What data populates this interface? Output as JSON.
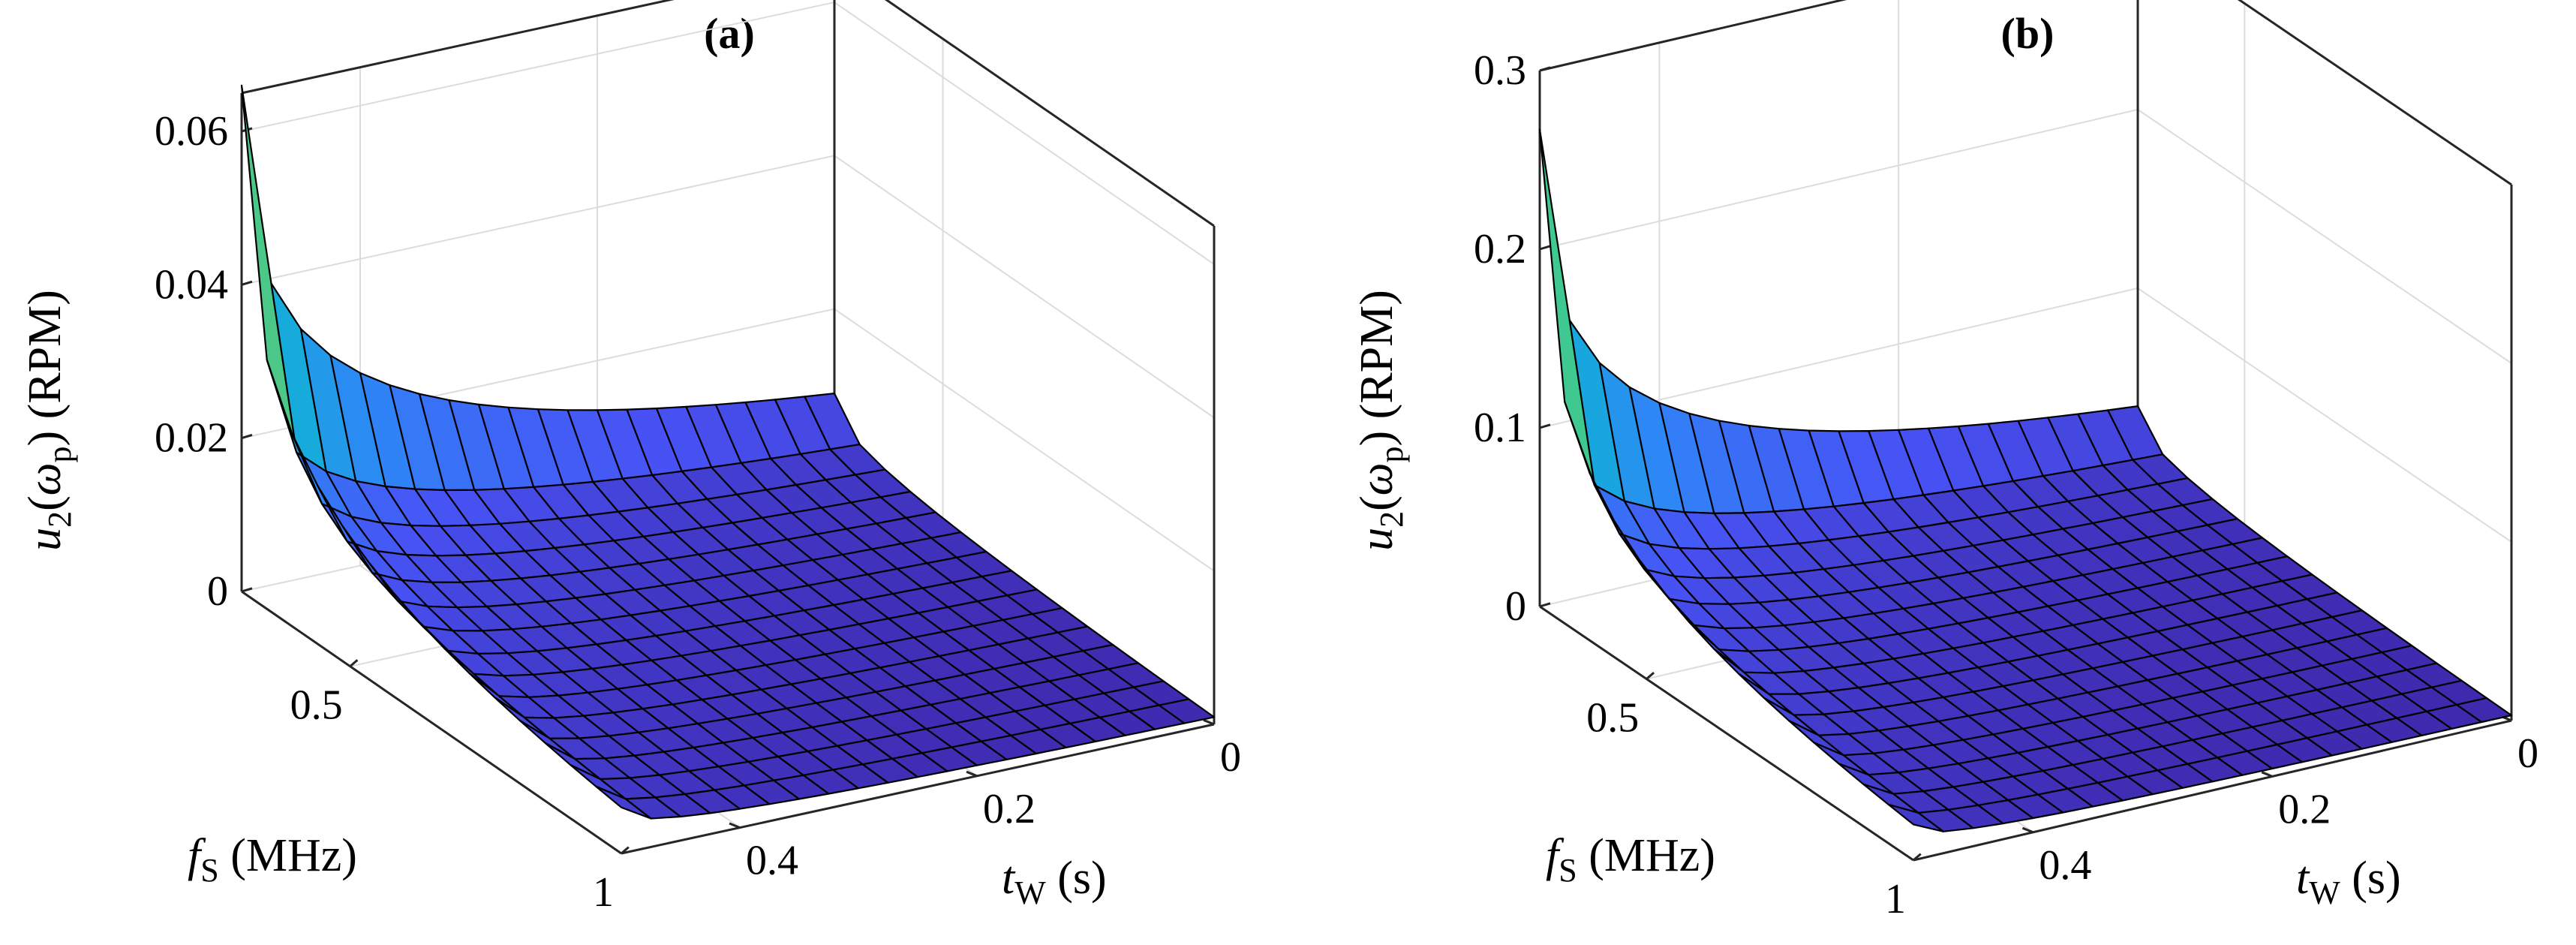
{
  "chart_data": [
    {
      "type": "surface",
      "title": "(a)",
      "zlabel": "u2(ωp) (RPM)",
      "xlabel": "fs (MHz)",
      "ylabel": "tw (s)",
      "x_range": [
        0.3,
        1.0
      ],
      "y_range": [
        0.0,
        0.5
      ],
      "zlim": [
        0,
        0.065
      ],
      "z_ticks": [
        {
          "value": 0,
          "label": "0"
        },
        {
          "value": 0.02,
          "label": "0.02"
        },
        {
          "value": 0.04,
          "label": "0.04"
        },
        {
          "value": 0.06,
          "label": "0.06"
        }
      ],
      "x_ticks": [
        {
          "value": 0.5,
          "label": "0.5"
        },
        {
          "value": 1.0,
          "label": "1"
        }
      ],
      "y_ticks": [
        {
          "value": 0.0,
          "label": "0"
        },
        {
          "value": 0.2,
          "label": "0.2"
        },
        {
          "value": 0.4,
          "label": "0.4"
        }
      ],
      "grid_size": [
        15,
        20
      ],
      "peak_value": 0.066,
      "corner_values": {
        "far_left": 0.006,
        "far_right": 0.009,
        "near": 0.0006
      },
      "colormap": "parula",
      "grid": true
    },
    {
      "type": "surface",
      "title": "(b)",
      "zlabel": "u2(ωp) (RPM)",
      "xlabel": "fs (MHz)",
      "ylabel": "tw (s)",
      "x_range": [
        0.3,
        1.0
      ],
      "y_range": [
        0.0,
        0.5
      ],
      "zlim": [
        0,
        0.3
      ],
      "z_ticks": [
        {
          "value": 0,
          "label": "0"
        },
        {
          "value": 0.1,
          "label": "0.1"
        },
        {
          "value": 0.2,
          "label": "0.2"
        },
        {
          "value": 0.3,
          "label": "0.3"
        }
      ],
      "x_ticks": [
        {
          "value": 0.5,
          "label": "0.5"
        },
        {
          "value": 1.0,
          "label": "1"
        }
      ],
      "y_ticks": [
        {
          "value": 0.0,
          "label": "0"
        },
        {
          "value": 0.2,
          "label": "0.2"
        },
        {
          "value": 0.4,
          "label": "0.4"
        }
      ],
      "grid_size": [
        15,
        20
      ],
      "peak_value": 0.267,
      "corner_values": {
        "far_left": 0.02,
        "far_right": 0.034,
        "near": 0.0023
      },
      "colormap": "parula",
      "grid": true
    }
  ],
  "labels": {
    "title_a": "(a)",
    "title_b": "(b)",
    "z_var": "u",
    "z_sub": "2",
    "z_open": "(",
    "z_omega": "ω",
    "z_omega_sub": "p",
    "z_close": ")",
    "z_unit": " (RPM)",
    "x_var": "f",
    "x_sub": "S",
    "x_unit": " (MHz)",
    "y_var": "t",
    "y_sub": "W",
    "y_unit": " (s)"
  }
}
